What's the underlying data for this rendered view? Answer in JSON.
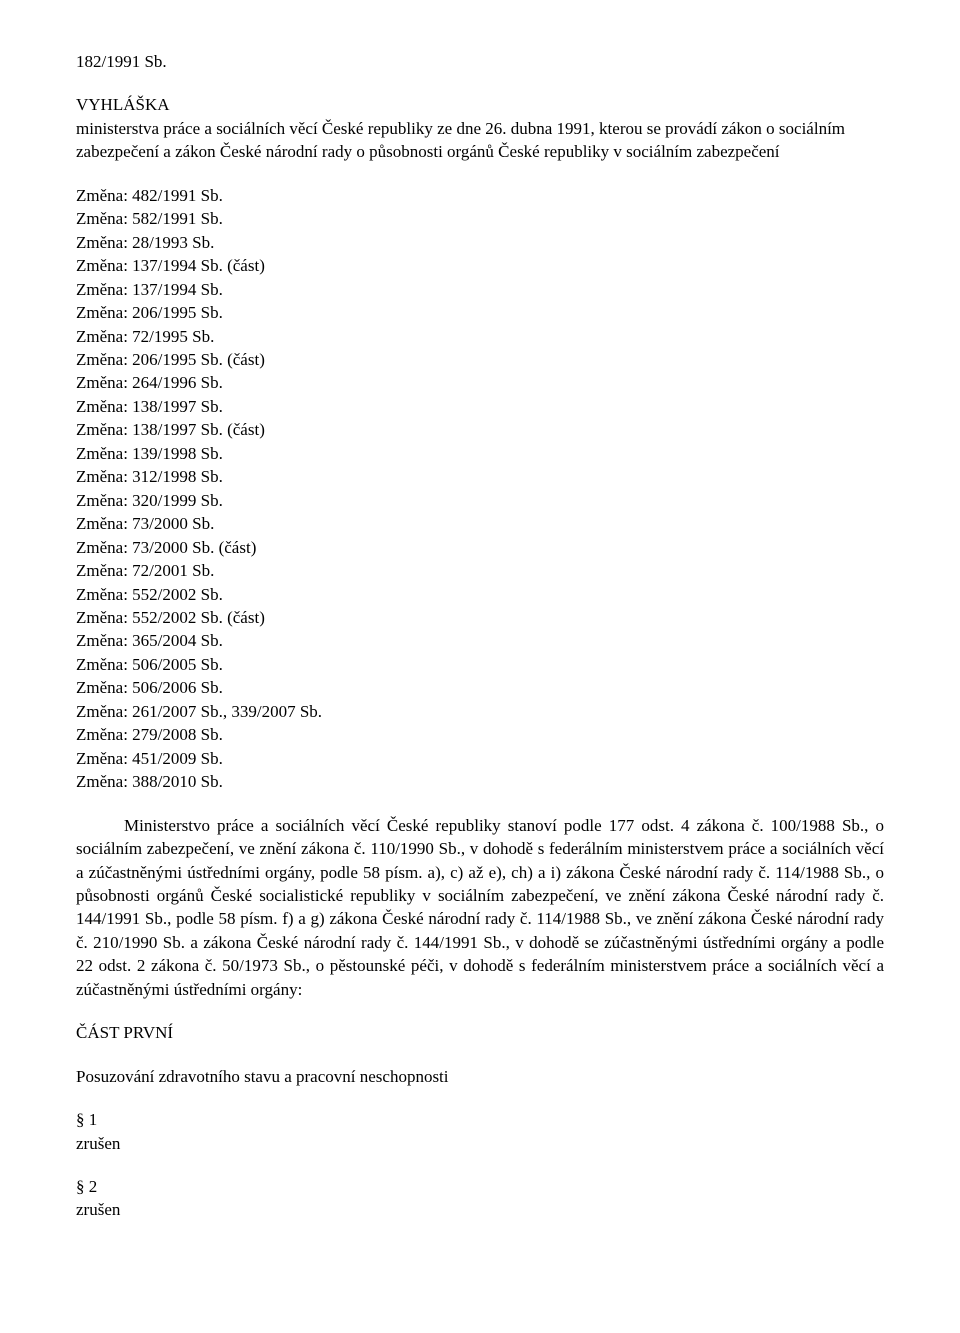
{
  "header": {
    "law_number": "182/1991 Sb.",
    "title": "VYHLÁŠKA",
    "issuer": "ministerstva práce a sociálních věcí České republiky ze dne 26. dubna 1991, kterou se provádí zákon o sociálním zabezpečení a zákon České národní rady o působnosti orgánů České republiky v sociálním zabezpečení"
  },
  "amendments": [
    "Změna: 482/1991 Sb.",
    "Změna: 582/1991 Sb.",
    "Změna: 28/1993 Sb.",
    "Změna: 137/1994 Sb. (část)",
    "Změna: 137/1994 Sb.",
    "Změna: 206/1995 Sb.",
    "Změna: 72/1995 Sb.",
    "Změna: 206/1995 Sb. (část)",
    "Změna: 264/1996 Sb.",
    "Změna: 138/1997 Sb.",
    "Změna: 138/1997 Sb. (část)",
    "Změna: 139/1998 Sb.",
    "Změna: 312/1998 Sb.",
    "Změna: 320/1999 Sb.",
    "Změna: 73/2000 Sb.",
    "Změna: 73/2000 Sb. (část)",
    "Změna: 72/2001 Sb.",
    "Změna: 552/2002 Sb.",
    "Změna: 552/2002 Sb. (část)",
    "Změna: 365/2004 Sb.",
    "Změna: 506/2005 Sb.",
    "Změna: 506/2006 Sb.",
    "Změna: 261/2007 Sb., 339/2007 Sb.",
    "Změna: 279/2008 Sb.",
    "Změna: 451/2009 Sb.",
    "Změna: 388/2010 Sb."
  ],
  "body": {
    "paragraph": "Ministerstvo práce a sociálních věcí České republiky stanoví podle 177 odst. 4 zákona č. 100/1988 Sb., o sociálním zabezpečení, ve znění zákona č. 110/1990 Sb., v dohodě s federálním ministerstvem práce a sociálních věcí a zúčastněnými ústředními orgány, podle 58 písm. a), c) až e), ch) a i) zákona České národní rady č. 114/1988 Sb., o působnosti orgánů České socialistické republiky v sociálním zabezpečení, ve znění zákona České národní rady č. 144/1991 Sb., podle 58 písm. f) a g) zákona České národní rady č. 114/1988 Sb., ve znění zákona České národní rady č. 210/1990 Sb. a zákona České národní rady č. 144/1991 Sb., v dohodě se zúčastněnými ústředními orgány a podle 22 odst. 2 zákona č. 50/1973 Sb., o pěstounské péči, v dohodě s federálním ministerstvem práce a sociálních věcí a zúčastněnými ústředními orgány:"
  },
  "part": {
    "label": "ČÁST PRVNÍ",
    "title": "Posuzování zdravotního stavu a pracovní neschopnosti"
  },
  "sections": [
    {
      "num": "§ 1",
      "status": "zrušen"
    },
    {
      "num": "§ 2",
      "status": "zrušen"
    }
  ]
}
